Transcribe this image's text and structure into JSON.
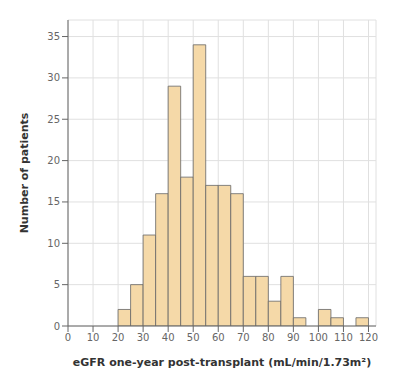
{
  "chart_data": {
    "type": "histogram",
    "bins": [
      20,
      25,
      30,
      35,
      40,
      45,
      50,
      55,
      60,
      65,
      70,
      75,
      80,
      85,
      90,
      95,
      100,
      105,
      110,
      115,
      120
    ],
    "values": [
      2,
      5,
      11,
      16,
      29,
      18,
      34,
      17,
      17,
      16,
      6,
      6,
      3,
      6,
      1,
      0,
      2,
      1,
      0,
      1
    ],
    "color": "#f5d9a8",
    "xlabel": "eGFR one-year post-transplant (mL/min/1.73m²)",
    "ylabel": "Number of patients",
    "xlim": [
      0,
      123
    ],
    "ylim": [
      0,
      37
    ],
    "xticks": [
      0,
      10,
      20,
      30,
      40,
      50,
      60,
      70,
      80,
      90,
      100,
      110,
      120
    ],
    "yticks": [
      0,
      5,
      10,
      15,
      20,
      25,
      30,
      35
    ],
    "grid": true
  }
}
